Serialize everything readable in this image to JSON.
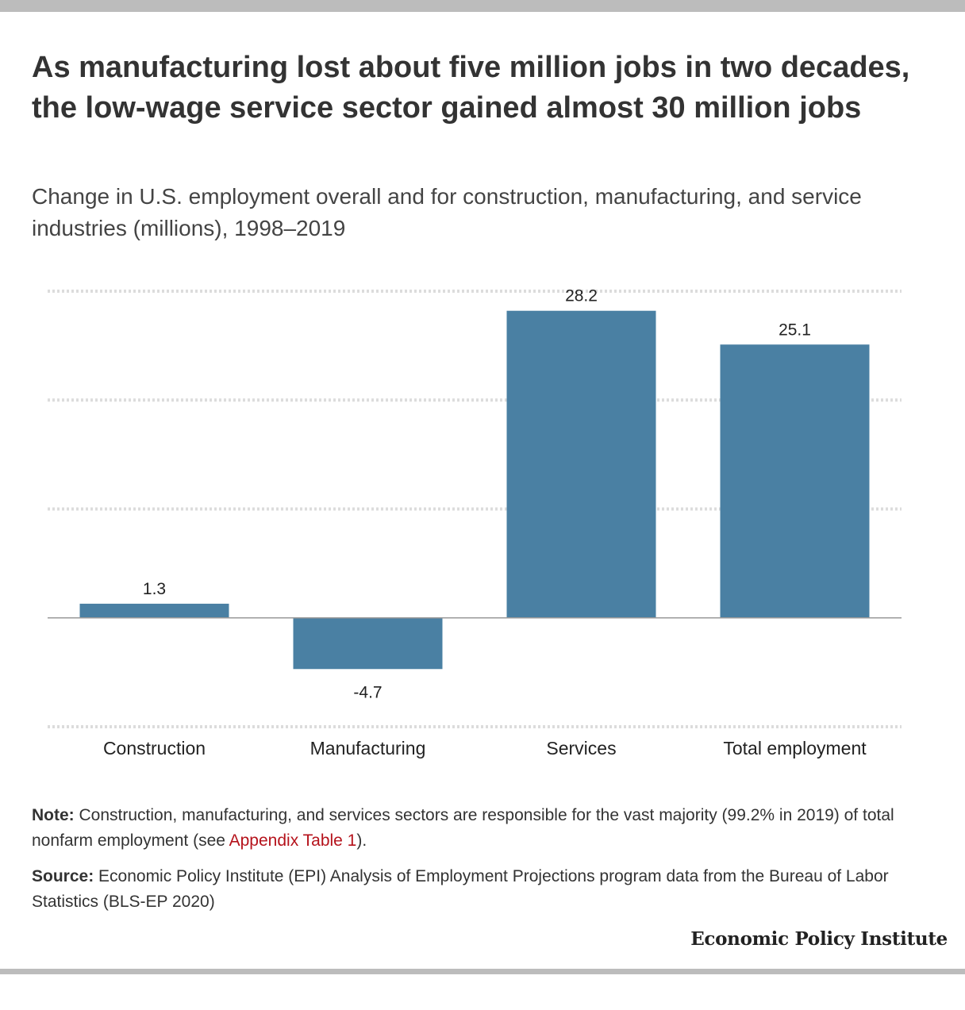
{
  "title": "As manufacturing lost about five million jobs in two decades, the low-wage service sector gained almost 30 million jobs",
  "subtitle": "Change in U.S. employment overall and for construction, manufacturing, and service industries (millions), 1998–2019",
  "colors": {
    "bar": "#4a80a3",
    "gridline": "#dcdcdc",
    "zero_line": "#999999",
    "link": "#b5121b",
    "rule": "#bcbcbc"
  },
  "chart_data": {
    "type": "bar",
    "categories": [
      "Construction",
      "Manufacturing",
      "Services",
      "Total employment"
    ],
    "values": [
      1.3,
      -4.7,
      28.2,
      25.1
    ],
    "data_labels": [
      "1.3",
      "-4.7",
      "28.2",
      "25.1"
    ],
    "title": "",
    "xlabel": "",
    "ylabel": "",
    "ylim": [
      -10,
      30
    ],
    "gridlines": [
      -10,
      0,
      10,
      20,
      30
    ],
    "grid": true,
    "legend": "none"
  },
  "note": {
    "label": "Note:",
    "text_before": " Construction, manufacturing, and services sectors are responsible for the vast majority (99.2% in 2019) of total nonfarm employment (see ",
    "link_text": "Appendix Table 1",
    "text_after": ")."
  },
  "source": {
    "label": "Source:",
    "text": " Economic Policy Institute (EPI) Analysis of Employment Projections program data from the Bureau of Labor Statistics (BLS-EP 2020)"
  },
  "brand": "Economic Policy Institute"
}
